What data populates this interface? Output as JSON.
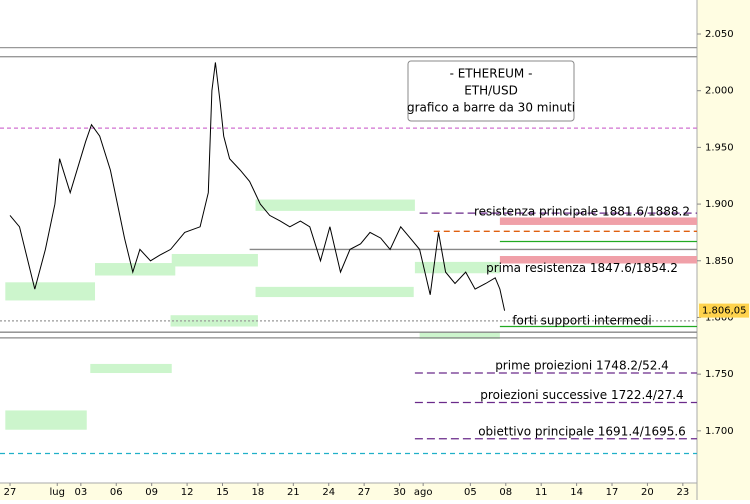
{
  "chart_data": {
    "type": "line",
    "info_box": [
      "- ETHEREUM -",
      "ETH/USD",
      "grafico a barre da 30 minuti"
    ],
    "x": [
      0,
      0.8,
      2.1,
      3,
      3.8,
      4.2,
      5.1,
      6.4,
      6.9,
      7.6,
      8.5,
      9.3,
      9.7,
      10.4,
      11,
      11.9,
      12.7,
      13.6,
      14.8,
      16.1,
      16.8,
      17.1,
      17.4,
      17.8,
      18.1,
      18.6,
      19.5,
      20.3,
      21.2,
      22,
      22.9,
      23.7,
      24.6,
      25.4,
      26.3,
      27.1,
      28,
      28.8,
      29.7,
      30.5,
      31.4,
      32.2,
      33.1,
      33.9,
      34.7,
      35.6,
      36.3,
      36.9,
      37.7,
      38.6,
      39.4,
      40.3,
      41.1,
      41.5,
      41.9
    ],
    "series": [
      {
        "color": "#000000",
        "values": [
          1890,
          1880,
          1825,
          1860,
          1900,
          1940,
          1910,
          1955,
          1970,
          1960,
          1930,
          1890,
          1870,
          1840,
          1860,
          1850,
          1855,
          1860,
          1875,
          1880,
          1910,
          2000,
          2025,
          1990,
          1960,
          1940,
          1930,
          1920,
          1900,
          1890,
          1885,
          1880,
          1885,
          1880,
          1850,
          1880,
          1840,
          1860,
          1865,
          1875,
          1870,
          1860,
          1880,
          1870,
          1860,
          1820,
          1875,
          1840,
          1830,
          1840,
          1825,
          1830,
          1835,
          1825,
          1806
        ]
      }
    ],
    "xlim": [
      -0.85,
      58.2
    ],
    "xticks": [
      {
        "value": 0,
        "label": "27"
      },
      {
        "value": 4,
        "label": "lug"
      },
      {
        "value": 6,
        "label": "03"
      },
      {
        "value": 9,
        "label": "06"
      },
      {
        "value": 12,
        "label": "09"
      },
      {
        "value": 15,
        "label": "12"
      },
      {
        "value": 18,
        "label": "15"
      },
      {
        "value": 21,
        "label": "18"
      },
      {
        "value": 24,
        "label": "21"
      },
      {
        "value": 27,
        "label": "24"
      },
      {
        "value": 30,
        "label": "27"
      },
      {
        "value": 33,
        "label": "30"
      },
      {
        "value": 35,
        "label": "ago"
      },
      {
        "value": 39,
        "label": "05"
      },
      {
        "value": 42,
        "label": "08"
      },
      {
        "value": 45,
        "label": "11"
      },
      {
        "value": 48,
        "label": "14"
      },
      {
        "value": 51,
        "label": "17"
      },
      {
        "value": 54,
        "label": "20"
      },
      {
        "value": 57,
        "label": "23"
      }
    ],
    "ylim": [
      1654,
      2080
    ],
    "yticks": [
      {
        "value": 1700,
        "label": "1.700"
      },
      {
        "value": 1750,
        "label": "1.750"
      },
      {
        "value": 1800,
        "label": "1.800"
      },
      {
        "value": 1850,
        "label": "1.850"
      },
      {
        "value": 1900,
        "label": "1.900"
      },
      {
        "value": 1950,
        "label": "1.950"
      },
      {
        "value": 2000,
        "label": "2.000"
      },
      {
        "value": 2050,
        "label": "2.050"
      }
    ],
    "last_price": {
      "value": 1806.05,
      "label": "1.806,05"
    },
    "zones": [
      {
        "x0": -0.4,
        "x1": 7.2,
        "y0": 1815,
        "y1": 1831,
        "color": "#ccf5cc"
      },
      {
        "x0": 7.2,
        "x1": 14,
        "y0": 1837,
        "y1": 1848,
        "color": "#ccf5cc"
      },
      {
        "x0": 13.7,
        "x1": 21,
        "y0": 1845,
        "y1": 1856,
        "color": "#ccf5cc"
      },
      {
        "x0": 20.8,
        "x1": 34.2,
        "y0": 1818,
        "y1": 1827,
        "color": "#ccf5cc"
      },
      {
        "x0": 20.8,
        "x1": 34.3,
        "y0": 1894,
        "y1": 1904,
        "color": "#ccf5cc"
      },
      {
        "x0": 13.6,
        "x1": 21,
        "y0": 1792,
        "y1": 1802,
        "color": "#ccf5cc"
      },
      {
        "x0": 34.3,
        "x1": 41.5,
        "y0": 1839,
        "y1": 1849,
        "color": "#ccf5cc"
      },
      {
        "x0": 34.7,
        "x1": 41.5,
        "y0": 1781,
        "y1": 1787,
        "color": "#ccf5cc"
      },
      {
        "x0": 6.8,
        "x1": 13.7,
        "y0": 1751,
        "y1": 1759,
        "color": "#ccf5cc"
      },
      {
        "x0": -0.4,
        "x1": 6.5,
        "y0": 1701,
        "y1": 1718,
        "color": "#ccf5cc"
      },
      {
        "x0": 41.5,
        "x1": 58.2,
        "y0": 1881.6,
        "y1": 1888.2,
        "color": "#f0a0a8"
      },
      {
        "x0": 41.5,
        "x1": 58.2,
        "y0": 1847.6,
        "y1": 1854.2,
        "color": "#f0a0a8"
      }
    ],
    "levels": [
      {
        "value": 2038,
        "color": "#999999",
        "dash": "none",
        "x0": -0.85
      },
      {
        "value": 2030,
        "color": "#999999",
        "dash": "none",
        "x0": -0.85
      },
      {
        "value": 1967,
        "color": "#d070d0",
        "dash": "4 3",
        "x0": -0.85
      },
      {
        "value": 1892,
        "color": "#6a2a8a",
        "dash": "8 4",
        "x0": 34.7
      },
      {
        "value": 1876,
        "color": "#e06010",
        "dash": "6 4",
        "x0": 35.9
      },
      {
        "value": 1867,
        "color": "#22aa22",
        "dash": "none",
        "x0": 41.5
      },
      {
        "value": 1860,
        "color": "#888888",
        "dash": "none",
        "x0": 20.3
      },
      {
        "value": 1797,
        "color": "#999999",
        "dash": "2 2",
        "x0": -0.85
      },
      {
        "value": 1792,
        "color": "#22aa22",
        "dash": "none",
        "x0": 41.5
      },
      {
        "value": 1787,
        "color": "#888888",
        "dash": "none",
        "x0": -0.85
      },
      {
        "value": 1782,
        "color": "#888888",
        "dash": "none",
        "x0": -0.85
      },
      {
        "value": 1751,
        "color": "#6a2a8a",
        "dash": "8 4",
        "x0": 34.3
      },
      {
        "value": 1725,
        "color": "#6a2a8a",
        "dash": "8 4",
        "x0": 34.3
      },
      {
        "value": 1693,
        "color": "#6a2a8a",
        "dash": "8 4",
        "x0": 34.3
      },
      {
        "value": 1680,
        "color": "#20b0c8",
        "dash": "5 4",
        "x0": -0.85
      }
    ],
    "annotations": [
      {
        "text": "resistenza principale 1881.6/1888.2",
        "value": 1893
      },
      {
        "text": "prima resistenza 1847.6/1854.2",
        "value": 1843
      },
      {
        "text": "forti supporti intermedi",
        "value": 1797
      },
      {
        "text": "prime proiezioni 1748.2/52.4",
        "value": 1757
      },
      {
        "text": "proiezioni successive 1722.4/27.4",
        "value": 1731
      },
      {
        "text": "obiettivo principale 1691.4/1695.6",
        "value": 1699
      }
    ]
  }
}
